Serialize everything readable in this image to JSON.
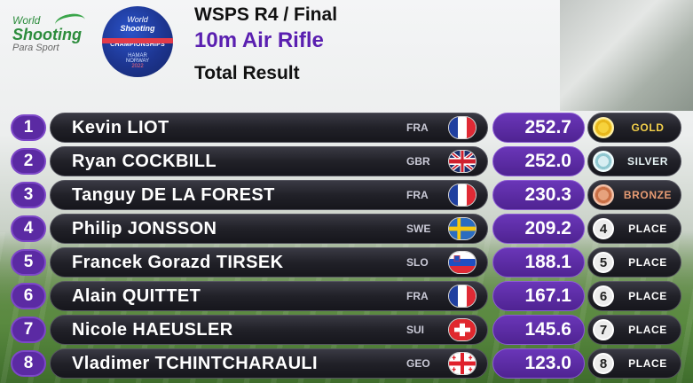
{
  "header": {
    "logo": {
      "line1": "World",
      "line2": "Shooting",
      "line3": "Para Sport"
    },
    "championship_logo": {
      "line1": "World",
      "line2": "Shooting",
      "line3": "CHAMPIONSHIPS",
      "line4": "HAMAR",
      "line5": "NORWAY",
      "line6": "2022"
    },
    "event": "WSPS R4 / Final",
    "discipline": "10m Air Rifle",
    "result_type": "Total Result"
  },
  "colors": {
    "accent_purple": "#5b2aa3",
    "title_purple": "#5a1fb0",
    "gold": "#f3d04b",
    "silver": "#e6f3f5",
    "bronze": "#e79b73"
  },
  "results": [
    {
      "rank": "1",
      "name": "Kevin LIOT",
      "country": "FRA",
      "flag": "france-flag-icon",
      "score": "252.7",
      "medal_type": "gold",
      "medal_icon_text": "",
      "medal_label": "GOLD"
    },
    {
      "rank": "2",
      "name": "Ryan COCKBILL",
      "country": "GBR",
      "flag": "uk-flag-icon",
      "score": "252.0",
      "medal_type": "silver",
      "medal_icon_text": "",
      "medal_label": "SILVER"
    },
    {
      "rank": "3",
      "name": "Tanguy DE LA FOREST",
      "country": "FRA",
      "flag": "france-flag-icon",
      "score": "230.3",
      "medal_type": "bronze",
      "medal_icon_text": "",
      "medal_label": "BRONZE"
    },
    {
      "rank": "4",
      "name": "Philip JONSSON",
      "country": "SWE",
      "flag": "sweden-flag-icon",
      "score": "209.2",
      "medal_type": "place",
      "medal_icon_text": "4",
      "medal_label": "PLACE"
    },
    {
      "rank": "5",
      "name": "Francek Gorazd TIRSEK",
      "country": "SLO",
      "flag": "slovenia-flag-icon",
      "score": "188.1",
      "medal_type": "place",
      "medal_icon_text": "5",
      "medal_label": "PLACE"
    },
    {
      "rank": "6",
      "name": "Alain QUITTET",
      "country": "FRA",
      "flag": "france-flag-icon",
      "score": "167.1",
      "medal_type": "place",
      "medal_icon_text": "6",
      "medal_label": "PLACE"
    },
    {
      "rank": "7",
      "name": "Nicole HAEUSLER",
      "country": "SUI",
      "flag": "switzerland-flag-icon",
      "score": "145.6",
      "medal_type": "place",
      "medal_icon_text": "7",
      "medal_label": "PLACE"
    },
    {
      "rank": "8",
      "name": "Vladimer TCHINTCHARAULI",
      "country": "GEO",
      "flag": "georgia-flag-icon",
      "score": "123.0",
      "medal_type": "place",
      "medal_icon_text": "8",
      "medal_label": "PLACE"
    }
  ]
}
